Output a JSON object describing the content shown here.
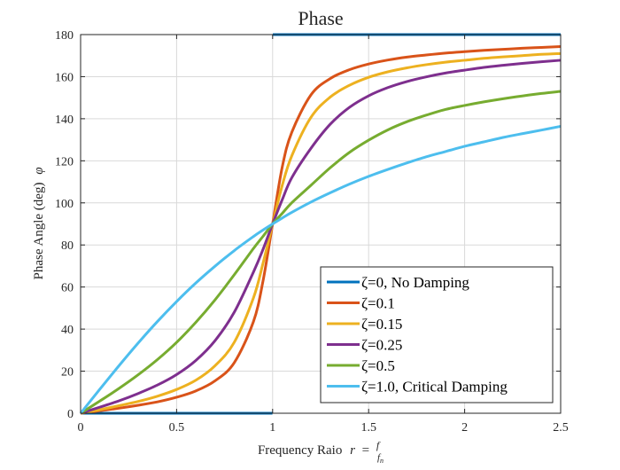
{
  "chart_data": {
    "type": "line",
    "title": "Phase",
    "xlabel": "Frequency Raio",
    "xlabel_math": "r = f/fn",
    "ylabel": "Phase Angle (deg)",
    "ylabel_math": "φ",
    "xlim": [
      0,
      2.5
    ],
    "ylim": [
      0,
      180
    ],
    "xticks": [
      0,
      0.5,
      1,
      1.5,
      2,
      2.5
    ],
    "xtick_labels": [
      "0",
      "0.5",
      "1",
      "1.5",
      "2",
      "2.5"
    ],
    "yticks": [
      0,
      20,
      40,
      60,
      80,
      100,
      120,
      140,
      160,
      180
    ],
    "ytick_labels": [
      "0",
      "20",
      "40",
      "60",
      "80",
      "100",
      "120",
      "140",
      "160",
      "180"
    ],
    "grid": true,
    "legend_position": "bottom-right",
    "x": [
      0,
      0.1,
      0.2,
      0.3,
      0.4,
      0.5,
      0.6,
      0.7,
      0.8,
      0.9,
      0.95,
      1.0,
      1.05,
      1.1,
      1.2,
      1.3,
      1.4,
      1.5,
      1.6,
      1.7,
      1.8,
      1.9,
      2.0,
      2.1,
      2.2,
      2.3,
      2.4,
      2.5
    ],
    "series": [
      {
        "name": "ζ=0, No Damping",
        "color": "#0072BD",
        "x": [
          0,
          0.999,
          1.001,
          2.5
        ],
        "values": [
          0,
          0,
          180,
          180
        ]
      },
      {
        "name": "ζ=0.1",
        "color": "#D95319",
        "values": [
          0,
          1.2,
          2.4,
          3.8,
          5.4,
          7.6,
          10.6,
          15.4,
          24.0,
          43.5,
          62.9,
          90,
          117.0,
          133.6,
          151.4,
          159.1,
          163.3,
          166.0,
          167.9,
          169.3,
          170.3,
          171.2,
          171.9,
          172.5,
          173.0,
          173.5,
          173.9,
          174.3
        ]
      },
      {
        "name": "ζ=0.15",
        "color": "#EDB120",
        "values": [
          0,
          1.7,
          3.6,
          5.6,
          8.1,
          11.3,
          15.7,
          22.6,
          33.7,
          54.8,
          71.3,
          90,
          108.3,
          122.4,
          140.7,
          150.3,
          155.9,
          159.7,
          162.3,
          164.2,
          165.7,
          166.9,
          167.8,
          168.7,
          169.4,
          170.0,
          170.6,
          171.0
        ]
      },
      {
        "name": "ζ=0.25",
        "color": "#7E2F8E",
        "values": [
          0,
          2.9,
          5.9,
          9.4,
          13.4,
          18.4,
          25.1,
          34.5,
          48.0,
          67.1,
          77.9,
          90,
          101.5,
          112.0,
          126.0,
          137.4,
          145.4,
          150.9,
          154.8,
          157.7,
          159.9,
          161.7,
          163.1,
          164.4,
          165.4,
          166.3,
          167.1,
          167.8
        ]
      },
      {
        "name": "ζ=0.5",
        "color": "#77AC30",
        "values": [
          0,
          5.8,
          11.8,
          18.3,
          25.5,
          33.7,
          43.2,
          53.9,
          65.8,
          78.3,
          84.1,
          90,
          95.0,
          100.1,
          108.4,
          116.7,
          124.0,
          129.8,
          134.7,
          138.6,
          141.7,
          144.4,
          146.3,
          148.0,
          149.5,
          150.8,
          152.0,
          153.0
        ]
      },
      {
        "name": "ζ=1.0, Critical Damping",
        "color": "#4DBEEE",
        "values": [
          0,
          11.4,
          22.6,
          33.4,
          43.6,
          53.1,
          61.9,
          69.9,
          77.3,
          84.0,
          87.1,
          90,
          92.8,
          95.5,
          100.4,
          104.8,
          108.9,
          112.6,
          115.9,
          119.0,
          121.9,
          124.4,
          126.9,
          129.0,
          131.1,
          132.9,
          134.6,
          136.4
        ]
      }
    ]
  }
}
